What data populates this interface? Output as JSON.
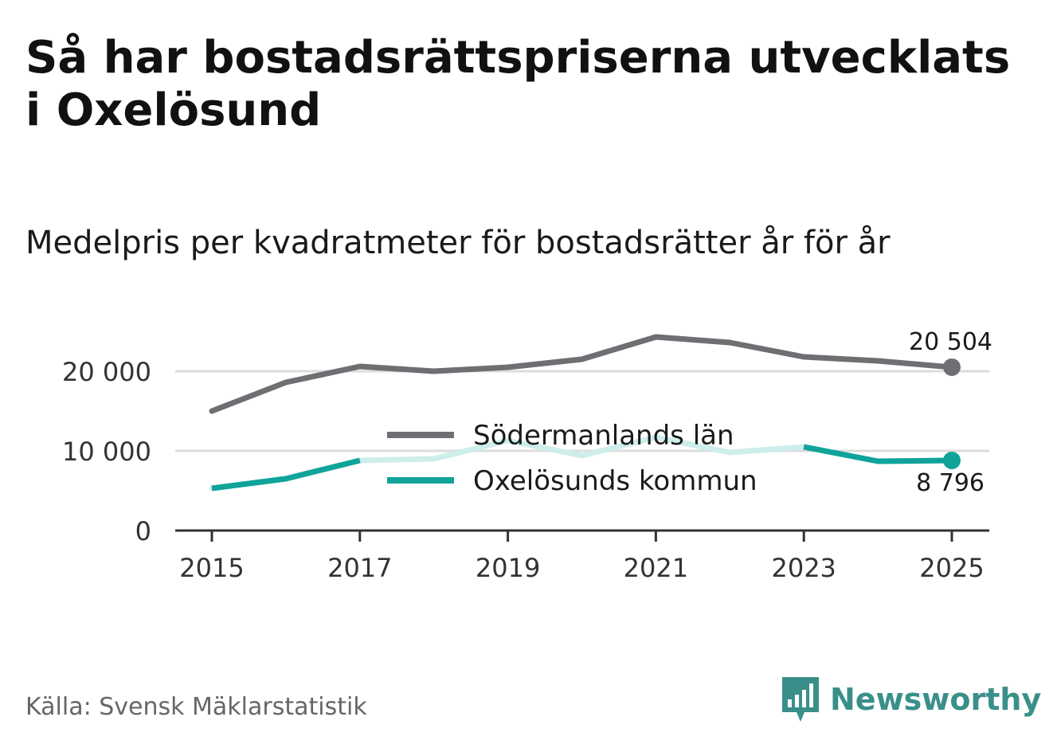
{
  "title": "Så har bostadsrättspriserna utvecklats i Oxelösund",
  "subtitle": "Medelpris per kvadratmeter för bostadsrätter år för år",
  "source": "Källa: Svensk Mäklarstatistik",
  "brand": {
    "name": "Newsworthy",
    "icon": "newsworthy-bar-chart-icon",
    "color": "#3a8f8a"
  },
  "chart_data": {
    "type": "line",
    "x": [
      2015,
      2016,
      2017,
      2018,
      2019,
      2020,
      2021,
      2022,
      2023,
      2024,
      2025
    ],
    "x_ticks": [
      2015,
      2017,
      2019,
      2021,
      2023,
      2025
    ],
    "x_tick_labels": [
      "2015",
      "2017",
      "2019",
      "2021",
      "2023",
      "2025"
    ],
    "y_ticks": [
      0,
      10000,
      20000
    ],
    "y_tick_labels": [
      "0",
      "10 000",
      "20 000"
    ],
    "ylim": [
      0,
      26000
    ],
    "grid": true,
    "legend_position": "center",
    "series": [
      {
        "name": "Södermanlands län",
        "color": "#6e6e73",
        "values": [
          15000,
          18600,
          20600,
          20000,
          20500,
          21500,
          24300,
          23600,
          21800,
          21300,
          20504
        ],
        "end_label": "20 504"
      },
      {
        "name": "Oxelösunds kommun",
        "color": "#0fa39a",
        "faded_color": "#cdeeeb",
        "values": [
          5300,
          6500,
          8800,
          9000,
          11300,
          9400,
          11700,
          9800,
          10500,
          8700,
          8796
        ],
        "end_label": "8 796"
      }
    ]
  }
}
